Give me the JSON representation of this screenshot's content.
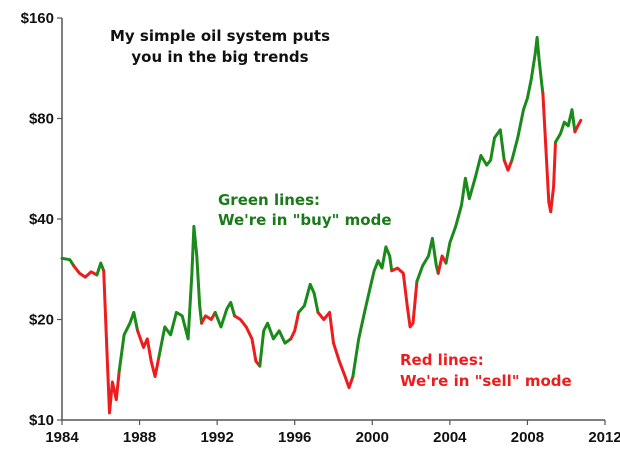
{
  "chart_data": {
    "type": "line",
    "title": "",
    "xlabel": "",
    "ylabel": "",
    "y_scale": "log",
    "xlim": [
      1984,
      2012
    ],
    "ylim": [
      10,
      160
    ],
    "x_ticks": [
      1984,
      1988,
      1992,
      1996,
      2000,
      2004,
      2008,
      2012
    ],
    "y_ticks": [
      10,
      20,
      40,
      80,
      160
    ],
    "y_tick_labels": [
      "$10",
      "$20",
      "$40",
      "$80",
      "$160"
    ],
    "colors": {
      "buy": "#1a8a1a",
      "sell": "#ee1c1c"
    },
    "annotations": [
      {
        "id": "headline",
        "color": "#111111",
        "lines": [
          "My simple oil system puts",
          "you in the big trends"
        ]
      },
      {
        "id": "buy-note",
        "color": "#1a7a1a",
        "lines": [
          "Green lines:",
          "We're in \"buy\" mode"
        ]
      },
      {
        "id": "sell-note",
        "color": "#ee1c1c",
        "lines": [
          "Red lines:",
          "We're in \"sell\" mode"
        ]
      }
    ],
    "series": [
      {
        "mode": "buy",
        "points": [
          [
            1984.0,
            30.5
          ],
          [
            1984.4,
            30.2
          ],
          [
            1984.6,
            29.0
          ]
        ]
      },
      {
        "mode": "sell",
        "points": [
          [
            1984.6,
            29.0
          ],
          [
            1984.9,
            27.5
          ],
          [
            1985.2,
            26.8
          ],
          [
            1985.5,
            27.8
          ],
          [
            1985.8,
            27.2
          ]
        ]
      },
      {
        "mode": "buy",
        "points": [
          [
            1985.8,
            27.2
          ],
          [
            1986.0,
            29.5
          ],
          [
            1986.15,
            28.0
          ]
        ]
      },
      {
        "mode": "sell",
        "points": [
          [
            1986.15,
            28.0
          ],
          [
            1986.3,
            17.0
          ],
          [
            1986.45,
            10.5
          ],
          [
            1986.6,
            13.0
          ],
          [
            1986.8,
            11.5
          ],
          [
            1986.95,
            14.0
          ]
        ]
      },
      {
        "mode": "buy",
        "points": [
          [
            1986.95,
            14.0
          ],
          [
            1987.2,
            18.0
          ],
          [
            1987.5,
            19.5
          ],
          [
            1987.7,
            21.0
          ],
          [
            1987.9,
            18.5
          ]
        ]
      },
      {
        "mode": "sell",
        "points": [
          [
            1987.9,
            18.5
          ],
          [
            1988.2,
            16.5
          ],
          [
            1988.4,
            17.5
          ],
          [
            1988.6,
            15.0
          ],
          [
            1988.8,
            13.5
          ],
          [
            1989.0,
            15.5
          ]
        ]
      },
      {
        "mode": "buy",
        "points": [
          [
            1989.0,
            15.5
          ],
          [
            1989.3,
            19.0
          ],
          [
            1989.6,
            18.0
          ],
          [
            1989.9,
            21.0
          ],
          [
            1990.2,
            20.5
          ],
          [
            1990.5,
            17.5
          ],
          [
            1990.7,
            27.5
          ],
          [
            1990.8,
            38.0
          ],
          [
            1990.95,
            31.0
          ],
          [
            1991.1,
            22.0
          ],
          [
            1991.2,
            19.5
          ]
        ]
      },
      {
        "mode": "sell",
        "points": [
          [
            1991.2,
            19.5
          ],
          [
            1991.4,
            20.5
          ],
          [
            1991.7,
            20.0
          ],
          [
            1991.9,
            21.0
          ]
        ]
      },
      {
        "mode": "buy",
        "points": [
          [
            1991.9,
            21.0
          ],
          [
            1992.2,
            19.0
          ],
          [
            1992.5,
            21.5
          ],
          [
            1992.7,
            22.5
          ],
          [
            1992.9,
            20.5
          ]
        ]
      },
      {
        "mode": "sell",
        "points": [
          [
            1992.9,
            20.5
          ],
          [
            1993.2,
            20.0
          ],
          [
            1993.5,
            19.0
          ],
          [
            1993.8,
            17.5
          ],
          [
            1994.0,
            15.0
          ],
          [
            1994.2,
            14.5
          ]
        ]
      },
      {
        "mode": "buy",
        "points": [
          [
            1994.2,
            14.5
          ],
          [
            1994.4,
            18.5
          ],
          [
            1994.6,
            19.5
          ],
          [
            1994.9,
            17.5
          ],
          [
            1995.2,
            18.5
          ],
          [
            1995.5,
            17.0
          ],
          [
            1995.8,
            17.5
          ]
        ]
      },
      {
        "mode": "sell",
        "points": [
          [
            1995.8,
            17.5
          ],
          [
            1996.0,
            18.5
          ],
          [
            1996.2,
            21.0
          ]
        ]
      },
      {
        "mode": "buy",
        "points": [
          [
            1996.2,
            21.0
          ],
          [
            1996.5,
            22.0
          ],
          [
            1996.8,
            25.5
          ],
          [
            1997.0,
            24.0
          ],
          [
            1997.2,
            21.0
          ]
        ]
      },
      {
        "mode": "sell",
        "points": [
          [
            1997.2,
            21.0
          ],
          [
            1997.5,
            20.0
          ],
          [
            1997.8,
            21.0
          ],
          [
            1998.0,
            17.0
          ],
          [
            1998.3,
            15.0
          ],
          [
            1998.6,
            13.5
          ],
          [
            1998.8,
            12.5
          ],
          [
            1999.0,
            13.5
          ]
        ]
      },
      {
        "mode": "buy",
        "points": [
          [
            1999.0,
            13.5
          ],
          [
            1999.3,
            17.5
          ],
          [
            1999.6,
            21.0
          ],
          [
            1999.9,
            25.0
          ],
          [
            2000.1,
            28.0
          ],
          [
            2000.3,
            30.0
          ],
          [
            2000.5,
            28.5
          ],
          [
            2000.7,
            33.0
          ],
          [
            2000.9,
            31.0
          ],
          [
            2001.0,
            28.0
          ]
        ]
      },
      {
        "mode": "sell",
        "points": [
          [
            2001.0,
            28.0
          ],
          [
            2001.3,
            28.5
          ],
          [
            2001.6,
            27.5
          ],
          [
            2001.8,
            22.0
          ],
          [
            2001.95,
            19.0
          ],
          [
            2002.1,
            19.5
          ],
          [
            2002.3,
            26.0
          ]
        ]
      },
      {
        "mode": "buy",
        "points": [
          [
            2002.3,
            26.0
          ],
          [
            2002.6,
            29.0
          ],
          [
            2002.9,
            31.0
          ],
          [
            2003.1,
            35.0
          ],
          [
            2003.3,
            29.0
          ],
          [
            2003.4,
            27.5
          ]
        ]
      },
      {
        "mode": "sell",
        "points": [
          [
            2003.4,
            27.5
          ],
          [
            2003.6,
            31.0
          ],
          [
            2003.8,
            29.5
          ]
        ]
      },
      {
        "mode": "buy",
        "points": [
          [
            2003.8,
            29.5
          ],
          [
            2004.0,
            34.0
          ],
          [
            2004.3,
            38.0
          ],
          [
            2004.6,
            44.0
          ],
          [
            2004.8,
            53.0
          ],
          [
            2005.0,
            46.0
          ],
          [
            2005.3,
            53.0
          ],
          [
            2005.6,
            62.0
          ],
          [
            2005.9,
            58.0
          ],
          [
            2006.1,
            60.0
          ],
          [
            2006.3,
            70.0
          ],
          [
            2006.6,
            74.0
          ],
          [
            2006.8,
            60.0
          ]
        ]
      },
      {
        "mode": "sell",
        "points": [
          [
            2006.8,
            60.0
          ],
          [
            2007.0,
            56.0
          ],
          [
            2007.2,
            60.0
          ]
        ]
      },
      {
        "mode": "buy",
        "points": [
          [
            2007.2,
            60.0
          ],
          [
            2007.5,
            70.0
          ],
          [
            2007.8,
            85.0
          ],
          [
            2008.0,
            92.0
          ],
          [
            2008.2,
            105.0
          ],
          [
            2008.4,
            125.0
          ],
          [
            2008.5,
            140.0
          ],
          [
            2008.6,
            120.0
          ],
          [
            2008.75,
            100.0
          ],
          [
            2008.8,
            95.0
          ]
        ]
      },
      {
        "mode": "sell",
        "points": [
          [
            2008.8,
            95.0
          ],
          [
            2008.95,
            65.0
          ],
          [
            2009.1,
            45.0
          ],
          [
            2009.2,
            42.0
          ],
          [
            2009.35,
            50.0
          ],
          [
            2009.45,
            68.0
          ]
        ]
      },
      {
        "mode": "buy",
        "points": [
          [
            2009.45,
            68.0
          ],
          [
            2009.7,
            72.0
          ],
          [
            2009.9,
            78.0
          ],
          [
            2010.1,
            76.0
          ],
          [
            2010.3,
            85.0
          ],
          [
            2010.45,
            73.0
          ]
        ]
      },
      {
        "mode": "sell",
        "points": [
          [
            2010.45,
            73.0
          ],
          [
            2010.6,
            76.0
          ],
          [
            2010.75,
            79.0
          ]
        ]
      }
    ]
  }
}
